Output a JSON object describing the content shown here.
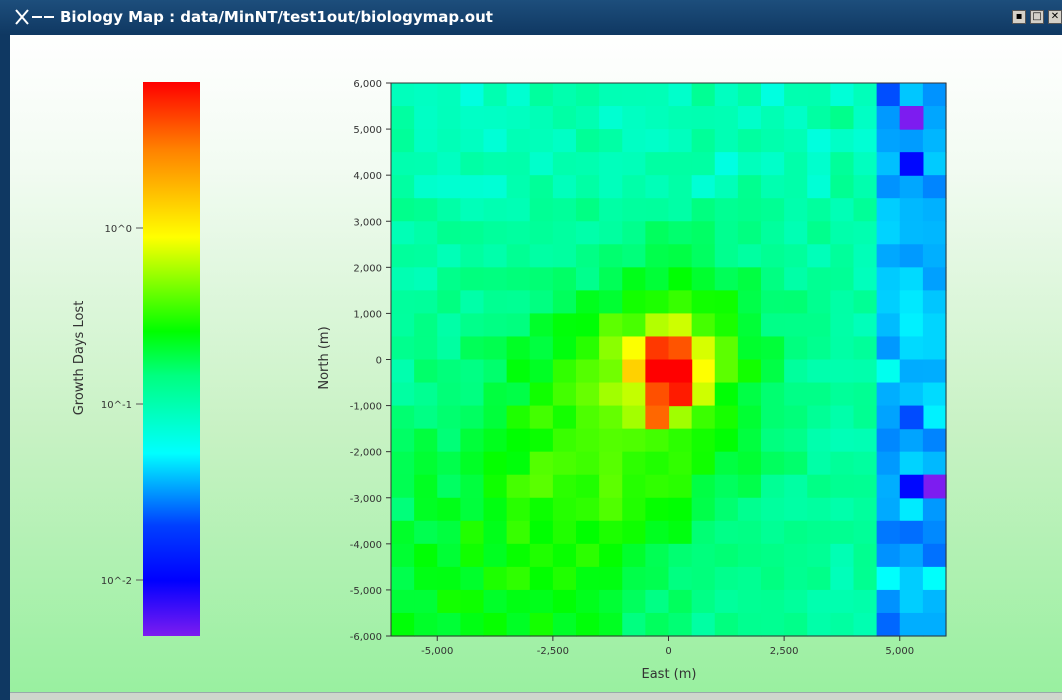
{
  "window": {
    "title": "Biology Map :  data/MinNT/test1out/biologymap.out",
    "title_icon": "x-window-icon",
    "controls": [
      "minimize-icon",
      "maximize-icon",
      "close-icon"
    ],
    "colors": {
      "titlebar": "#0f3862",
      "title_text": "#ffffff"
    }
  },
  "colorbar": {
    "label": "Growth Days Lost",
    "ticks": [
      {
        "label": "10^0",
        "value": 1
      },
      {
        "label": "10^-1",
        "value": 0.1
      },
      {
        "label": "10^-2",
        "value": 0.01
      }
    ],
    "scale": "log",
    "range": [
      0.0045,
      6.0
    ],
    "colormap": [
      "#7d1cf0",
      "#0000ff",
      "#00ffff",
      "#00ff00",
      "#ffff00",
      "#ff0000"
    ]
  },
  "chart_data": {
    "type": "heatmap",
    "xlabel": "East (m)",
    "ylabel": "North (m)",
    "xlim": [
      -6000,
      6000
    ],
    "ylim": [
      -6000,
      6000
    ],
    "x_ticks": [
      "-5,000",
      "-2,500",
      "0",
      "2,500",
      "5,000"
    ],
    "x_tick_values": [
      -5000,
      -2500,
      0,
      2500,
      5000
    ],
    "y_ticks": [
      "6,000",
      "5,000",
      "4,000",
      "3,000",
      "2,000",
      "1,000",
      "0",
      "-1,000",
      "-2,000",
      "-3,000",
      "-4,000",
      "-5,000",
      "-6,000"
    ],
    "y_tick_values": [
      6000,
      5000,
      4000,
      3000,
      2000,
      1000,
      0,
      -1000,
      -2000,
      -3000,
      -4000,
      -5000,
      -6000
    ],
    "grid_size": [
      24,
      24
    ],
    "peak": {
      "east": 0,
      "north": -200,
      "value": 6.0
    },
    "values_note_scale": "log10 of Growth Days Lost",
    "notable_cells": [
      {
        "east": 0,
        "north": 0,
        "value": 6.0
      },
      {
        "east": 0,
        "north": -500,
        "value": 5.0
      },
      {
        "east": -500,
        "north": -500,
        "value": 3.5
      },
      {
        "east": -500,
        "north": -1000,
        "value": 3.0
      },
      {
        "east": 5250,
        "north": 5250,
        "value": 0.0045
      },
      {
        "east": 5250,
        "north": 4500,
        "value": 0.01
      },
      {
        "east": 5750,
        "north": -2500,
        "value": 0.0045
      },
      {
        "east": 5750,
        "north": -2750,
        "value": 0.0045
      },
      {
        "east": 5250,
        "north": -2500,
        "value": 0.01
      },
      {
        "east": 5250,
        "north": -1250,
        "value": 0.02
      }
    ]
  }
}
